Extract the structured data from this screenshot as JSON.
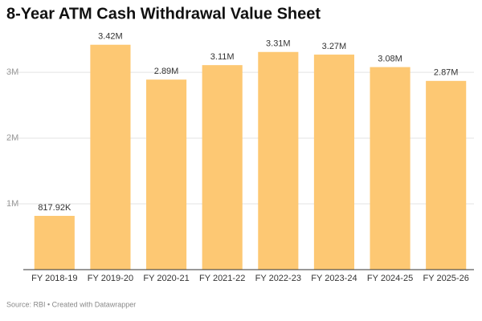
{
  "chart_data": {
    "type": "bar",
    "title": "8-Year ATM Cash Withdrawal Value Sheet",
    "source": "Source: RBI • Created with Datawrapper",
    "categories": [
      "FY 2018-19",
      "FY 2019-20",
      "FY 2020-21",
      "FY 2021-22",
      "FY 2022-23",
      "FY 2023-24",
      "FY 2024-25",
      "FY 2025-26"
    ],
    "values": [
      817920,
      3420000,
      2890000,
      3110000,
      3310000,
      3270000,
      3080000,
      2870000
    ],
    "value_labels": [
      "817.92K",
      "3.42M",
      "2.89M",
      "3.11M",
      "3.31M",
      "3.27M",
      "3.08M",
      "2.87M"
    ],
    "color": "#fdc873",
    "ylim": [
      0,
      3600000
    ],
    "yticks": [
      {
        "value": 1000000,
        "label": "1M"
      },
      {
        "value": 2000000,
        "label": "2M"
      },
      {
        "value": 3000000,
        "label": "3M"
      }
    ],
    "grid": true
  }
}
